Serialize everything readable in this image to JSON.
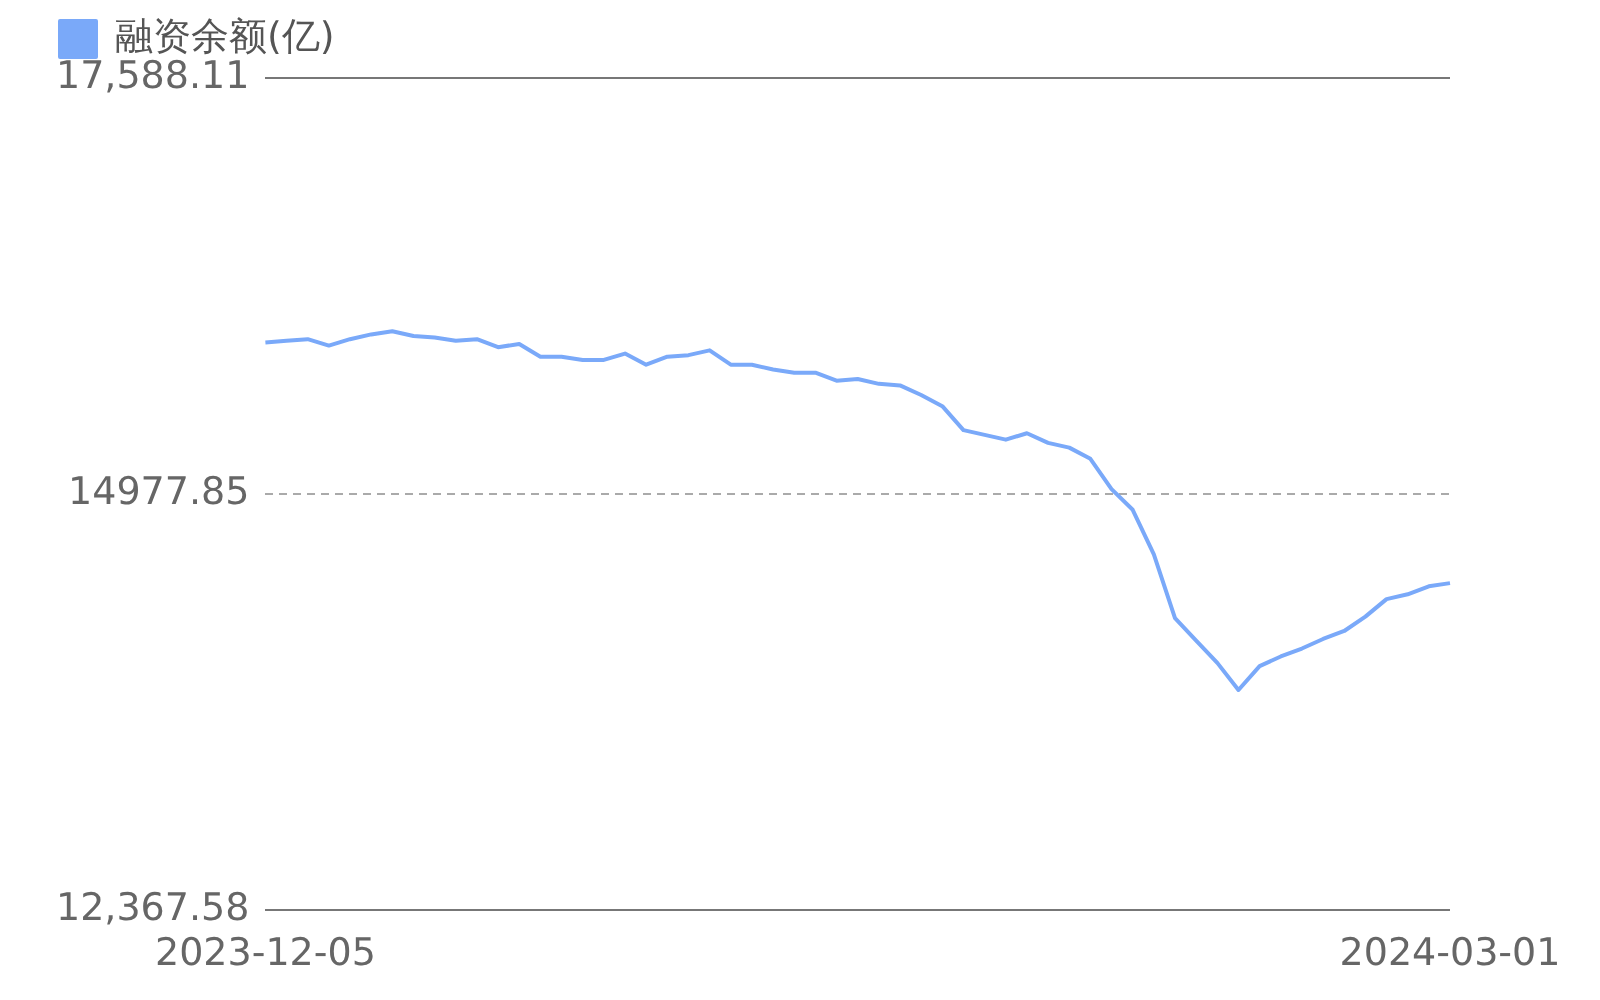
{
  "chart_data": {
    "type": "line",
    "categories": [
      "2023-12-05",
      null,
      null,
      null,
      null,
      null,
      null,
      null,
      null,
      null,
      null,
      null,
      null,
      null,
      null,
      null,
      null,
      null,
      null,
      null,
      null,
      null,
      null,
      null,
      null,
      null,
      null,
      null,
      null,
      null,
      null,
      null,
      null,
      null,
      null,
      null,
      null,
      null,
      null,
      null,
      null,
      null,
      null,
      null,
      null,
      null,
      null,
      null,
      null,
      null,
      null,
      null,
      null,
      null,
      null,
      null,
      "2024-03-01"
    ],
    "series": [
      {
        "name": "融资余额(亿)",
        "color": "#7aa9f9",
        "values": [
          15930,
          15940,
          15950,
          15910,
          15950,
          15980,
          16000,
          15970,
          15960,
          15940,
          15950,
          15900,
          15920,
          15840,
          15840,
          15820,
          15820,
          15860,
          15790,
          15840,
          15850,
          15880,
          15790,
          15790,
          15760,
          15740,
          15740,
          15690,
          15700,
          15670,
          15660,
          15600,
          15530,
          15380,
          15350,
          15320,
          15360,
          15300,
          15270,
          15200,
          15010,
          14880,
          14600,
          14200,
          14060,
          13920,
          13750,
          13900,
          13960,
          14010,
          14070,
          14120,
          14210,
          14320,
          14350,
          14400,
          14420
        ]
      }
    ],
    "ylim": [
      12367.58,
      17588.11
    ],
    "yticks": [
      {
        "value": 12367.58,
        "label": "12,367.58"
      },
      {
        "value": 14977.85,
        "label": "14977.85"
      },
      {
        "value": 17588.11,
        "label": "17,588.11"
      }
    ],
    "grid": "y",
    "legend": "top left",
    "marker": "none",
    "line_style": "solid"
  }
}
